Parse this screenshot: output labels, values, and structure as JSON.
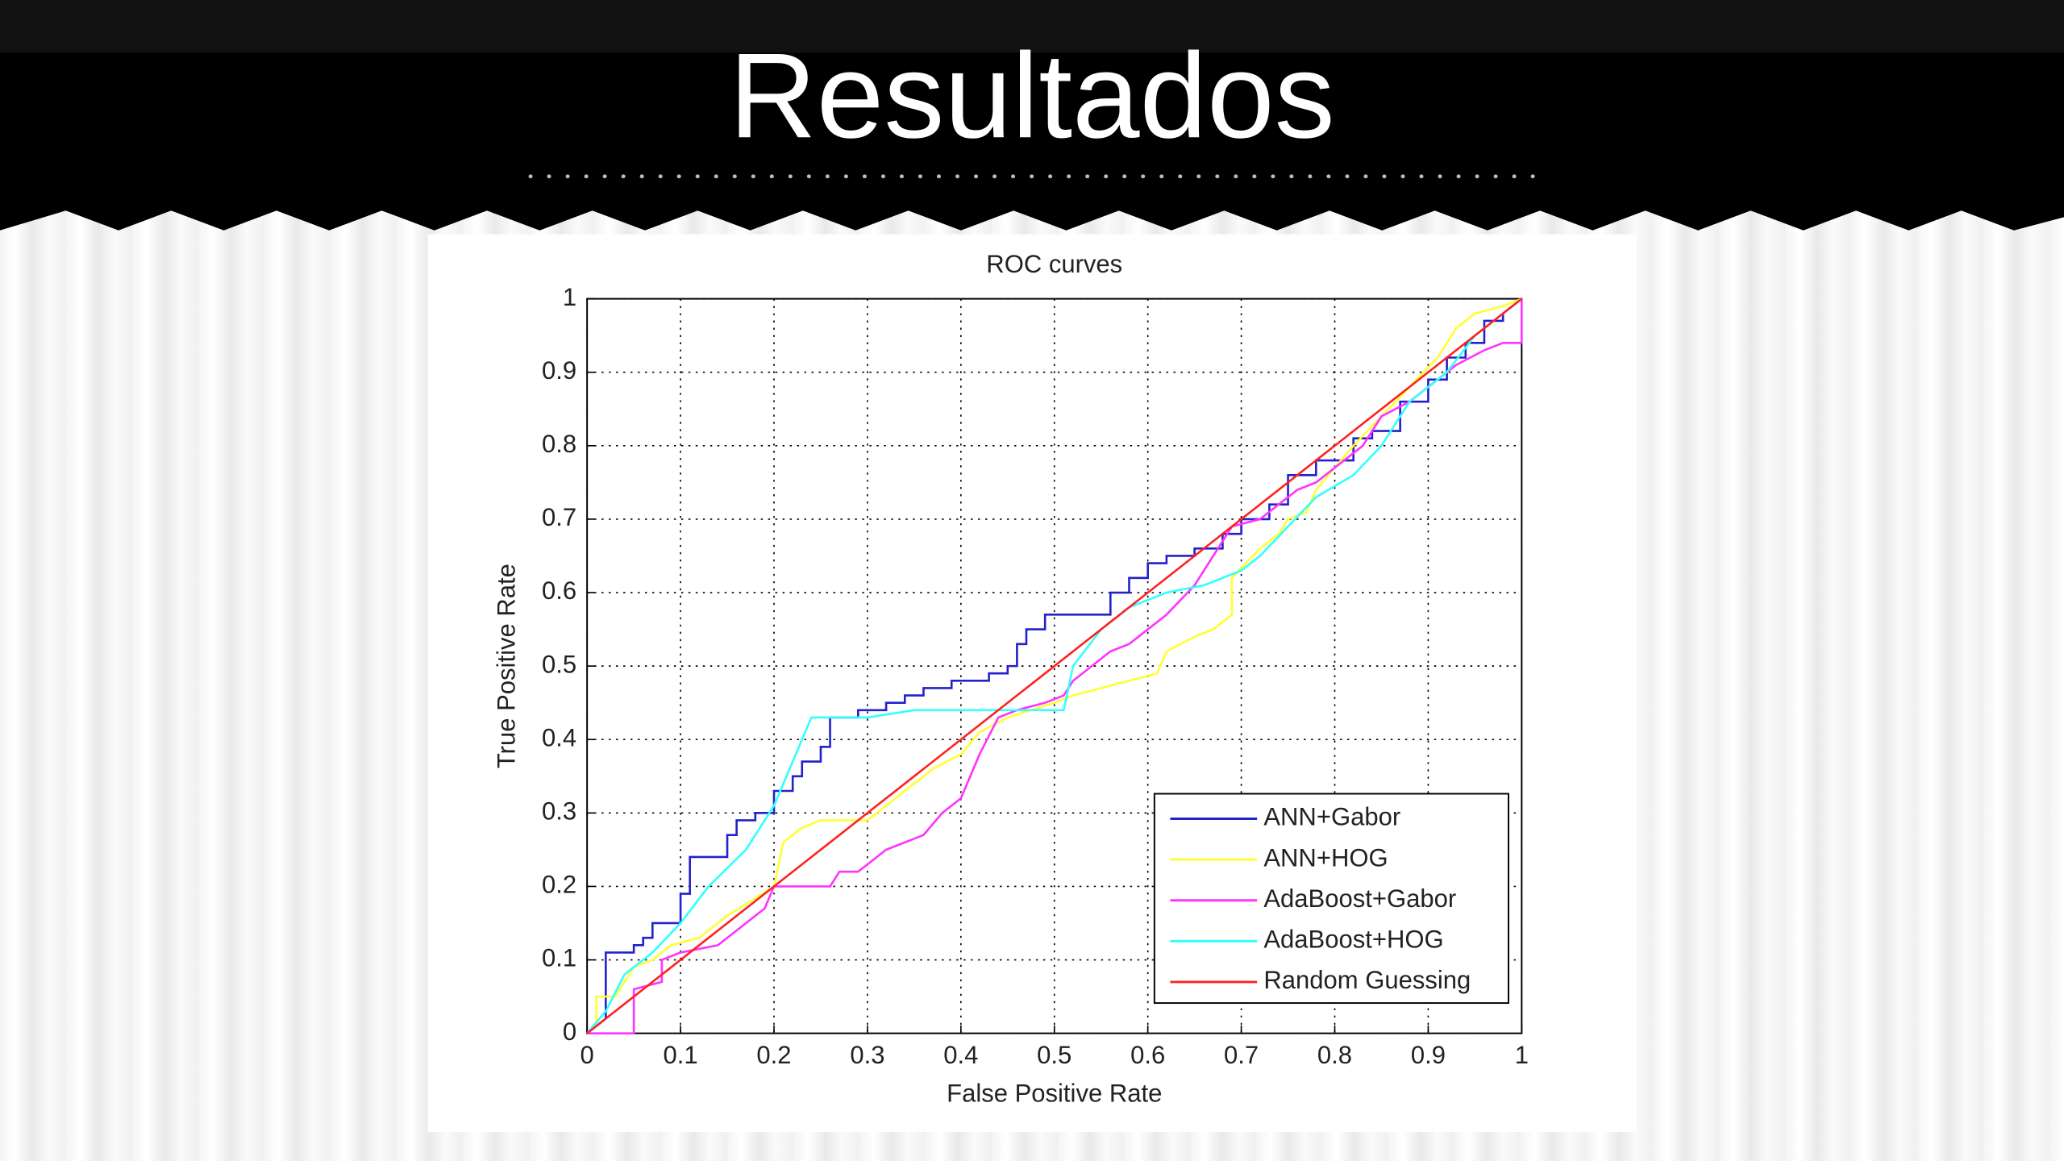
{
  "slide": {
    "title": "Resultados"
  },
  "chart_data": {
    "type": "line",
    "title": "ROC curves",
    "x_label": "False Positive Rate",
    "y_label": "True Positive Rate",
    "xlim": [
      0,
      1
    ],
    "ylim": [
      0,
      1
    ],
    "xticks": [
      0,
      0.1,
      0.2,
      0.3,
      0.4,
      0.5,
      0.6,
      0.7,
      0.8,
      0.9,
      1
    ],
    "yticks": [
      0,
      0.1,
      0.2,
      0.3,
      0.4,
      0.5,
      0.6,
      0.7,
      0.8,
      0.9,
      1
    ],
    "grid": true,
    "legend": "lower right",
    "series": [
      {
        "name": "ANN+Gabor",
        "color": "#2222cc",
        "x": [
          0,
          0.02,
          0.02,
          0.05,
          0.05,
          0.06,
          0.06,
          0.07,
          0.07,
          0.1,
          0.1,
          0.11,
          0.11,
          0.15,
          0.15,
          0.16,
          0.16,
          0.18,
          0.18,
          0.2,
          0.2,
          0.22,
          0.22,
          0.23,
          0.23,
          0.25,
          0.25,
          0.26,
          0.26,
          0.29,
          0.29,
          0.32,
          0.32,
          0.34,
          0.34,
          0.36,
          0.36,
          0.39,
          0.39,
          0.43,
          0.43,
          0.45,
          0.45,
          0.46,
          0.46,
          0.47,
          0.47,
          0.49,
          0.49,
          0.56,
          0.56,
          0.58,
          0.58,
          0.6,
          0.6,
          0.62,
          0.62,
          0.65,
          0.65,
          0.68,
          0.68,
          0.7,
          0.7,
          0.73,
          0.73,
          0.75,
          0.75,
          0.78,
          0.78,
          0.82,
          0.82,
          0.84,
          0.84,
          0.87,
          0.87,
          0.9,
          0.9,
          0.92,
          0.92,
          0.94,
          0.94,
          0.96,
          0.96,
          0.98,
          0.98,
          1
        ],
        "values": [
          0,
          0.02,
          0.11,
          0.11,
          0.12,
          0.12,
          0.13,
          0.13,
          0.15,
          0.15,
          0.19,
          0.19,
          0.24,
          0.24,
          0.27,
          0.27,
          0.29,
          0.29,
          0.3,
          0.3,
          0.33,
          0.33,
          0.35,
          0.35,
          0.37,
          0.37,
          0.39,
          0.39,
          0.43,
          0.43,
          0.44,
          0.44,
          0.45,
          0.45,
          0.46,
          0.46,
          0.47,
          0.47,
          0.48,
          0.48,
          0.49,
          0.49,
          0.5,
          0.5,
          0.53,
          0.53,
          0.55,
          0.55,
          0.57,
          0.57,
          0.6,
          0.6,
          0.62,
          0.62,
          0.64,
          0.64,
          0.65,
          0.65,
          0.66,
          0.66,
          0.68,
          0.68,
          0.7,
          0.7,
          0.72,
          0.72,
          0.76,
          0.76,
          0.78,
          0.78,
          0.81,
          0.81,
          0.82,
          0.82,
          0.86,
          0.86,
          0.89,
          0.89,
          0.92,
          0.92,
          0.94,
          0.94,
          0.97,
          0.97,
          0.98,
          1
        ]
      },
      {
        "name": "ANN+HOG",
        "color": "#ffff33",
        "x": [
          0,
          0.01,
          0.01,
          0.03,
          0.05,
          0.07,
          0.09,
          0.12,
          0.15,
          0.2,
          0.21,
          0.23,
          0.25,
          0.3,
          0.32,
          0.35,
          0.37,
          0.4,
          0.42,
          0.45,
          0.5,
          0.52,
          0.55,
          0.58,
          0.61,
          0.62,
          0.65,
          0.67,
          0.69,
          0.69,
          0.72,
          0.74,
          0.75,
          0.77,
          0.78,
          0.8,
          0.82,
          0.85,
          0.88,
          0.91,
          0.93,
          0.95,
          0.98,
          1
        ],
        "values": [
          0,
          0.01,
          0.05,
          0.05,
          0.09,
          0.1,
          0.12,
          0.13,
          0.16,
          0.2,
          0.26,
          0.28,
          0.29,
          0.29,
          0.31,
          0.34,
          0.36,
          0.38,
          0.41,
          0.43,
          0.45,
          0.46,
          0.47,
          0.48,
          0.49,
          0.52,
          0.54,
          0.55,
          0.57,
          0.62,
          0.66,
          0.68,
          0.7,
          0.71,
          0.74,
          0.77,
          0.8,
          0.84,
          0.88,
          0.92,
          0.96,
          0.98,
          0.99,
          1
        ]
      },
      {
        "name": "AdaBoost+Gabor",
        "color": "#ff33ff",
        "x": [
          0,
          0.05,
          0.05,
          0.08,
          0.08,
          0.1,
          0.14,
          0.17,
          0.19,
          0.2,
          0.26,
          0.27,
          0.29,
          0.32,
          0.36,
          0.38,
          0.4,
          0.42,
          0.44,
          0.46,
          0.49,
          0.51,
          0.52,
          0.54,
          0.56,
          0.58,
          0.6,
          0.62,
          0.65,
          0.66,
          0.69,
          0.72,
          0.74,
          0.76,
          0.78,
          0.81,
          0.83,
          0.85,
          0.88,
          0.9,
          0.93,
          0.96,
          0.98,
          1,
          1
        ],
        "values": [
          0,
          0,
          0.06,
          0.07,
          0.1,
          0.11,
          0.12,
          0.15,
          0.17,
          0.2,
          0.2,
          0.22,
          0.22,
          0.25,
          0.27,
          0.3,
          0.32,
          0.38,
          0.43,
          0.44,
          0.45,
          0.46,
          0.48,
          0.5,
          0.52,
          0.53,
          0.55,
          0.57,
          0.61,
          0.63,
          0.69,
          0.7,
          0.72,
          0.74,
          0.75,
          0.78,
          0.8,
          0.84,
          0.86,
          0.88,
          0.91,
          0.93,
          0.94,
          0.94,
          1
        ]
      },
      {
        "name": "AdaBoost+HOG",
        "color": "#33ffff",
        "x": [
          0,
          0.02,
          0.04,
          0.07,
          0.1,
          0.13,
          0.17,
          0.2,
          0.24,
          0.3,
          0.35,
          0.42,
          0.5,
          0.51,
          0.52,
          0.55,
          0.58,
          0.62,
          0.66,
          0.7,
          0.72,
          0.75,
          0.78,
          0.82,
          0.85,
          0.88,
          0.92,
          0.95,
          1
        ],
        "values": [
          0,
          0.03,
          0.08,
          0.11,
          0.15,
          0.2,
          0.25,
          0.31,
          0.43,
          0.43,
          0.44,
          0.44,
          0.44,
          0.44,
          0.5,
          0.55,
          0.58,
          0.6,
          0.61,
          0.63,
          0.65,
          0.69,
          0.73,
          0.76,
          0.8,
          0.86,
          0.9,
          0.95,
          1
        ]
      },
      {
        "name": "Random Guessing",
        "color": "#ff2222",
        "x": [
          0,
          1
        ],
        "values": [
          0,
          1
        ]
      }
    ]
  }
}
